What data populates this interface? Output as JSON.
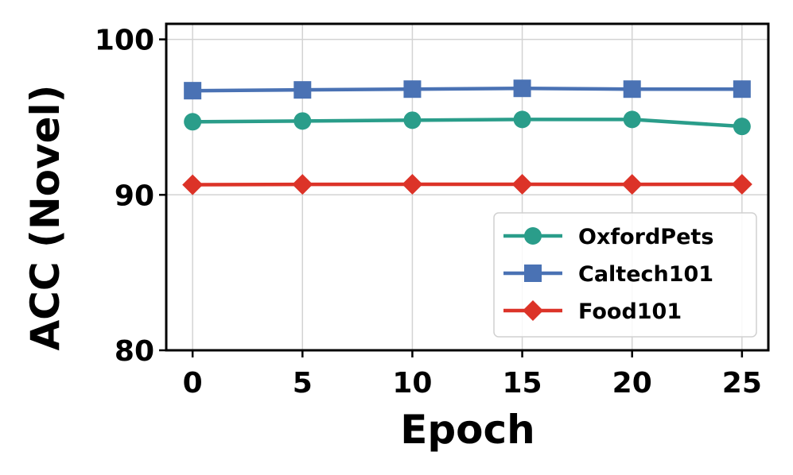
{
  "chart_data": {
    "type": "line",
    "title": "",
    "xlabel": "Epoch",
    "ylabel": "ACC (Novel)",
    "x": [
      0,
      5,
      10,
      15,
      20,
      25
    ],
    "xticks": [
      "0",
      "5",
      "10",
      "15",
      "20",
      "25"
    ],
    "yticks": [
      "80",
      "90",
      "100"
    ],
    "xlim": [
      -1.2,
      26.2
    ],
    "ylim": [
      80,
      101
    ],
    "grid": true,
    "legend_position": "lower-right",
    "series": [
      {
        "name": "OxfordPets",
        "color": "#2a9d8a",
        "marker": "circle",
        "values": [
          94.7,
          94.75,
          94.8,
          94.85,
          94.85,
          94.4
        ]
      },
      {
        "name": "Caltech101",
        "color": "#4a72b4",
        "marker": "square",
        "values": [
          96.7,
          96.75,
          96.8,
          96.85,
          96.8,
          96.8
        ]
      },
      {
        "name": "Food101",
        "color": "#dc3328",
        "marker": "diamond",
        "values": [
          90.65,
          90.67,
          90.68,
          90.68,
          90.67,
          90.68
        ]
      }
    ]
  }
}
